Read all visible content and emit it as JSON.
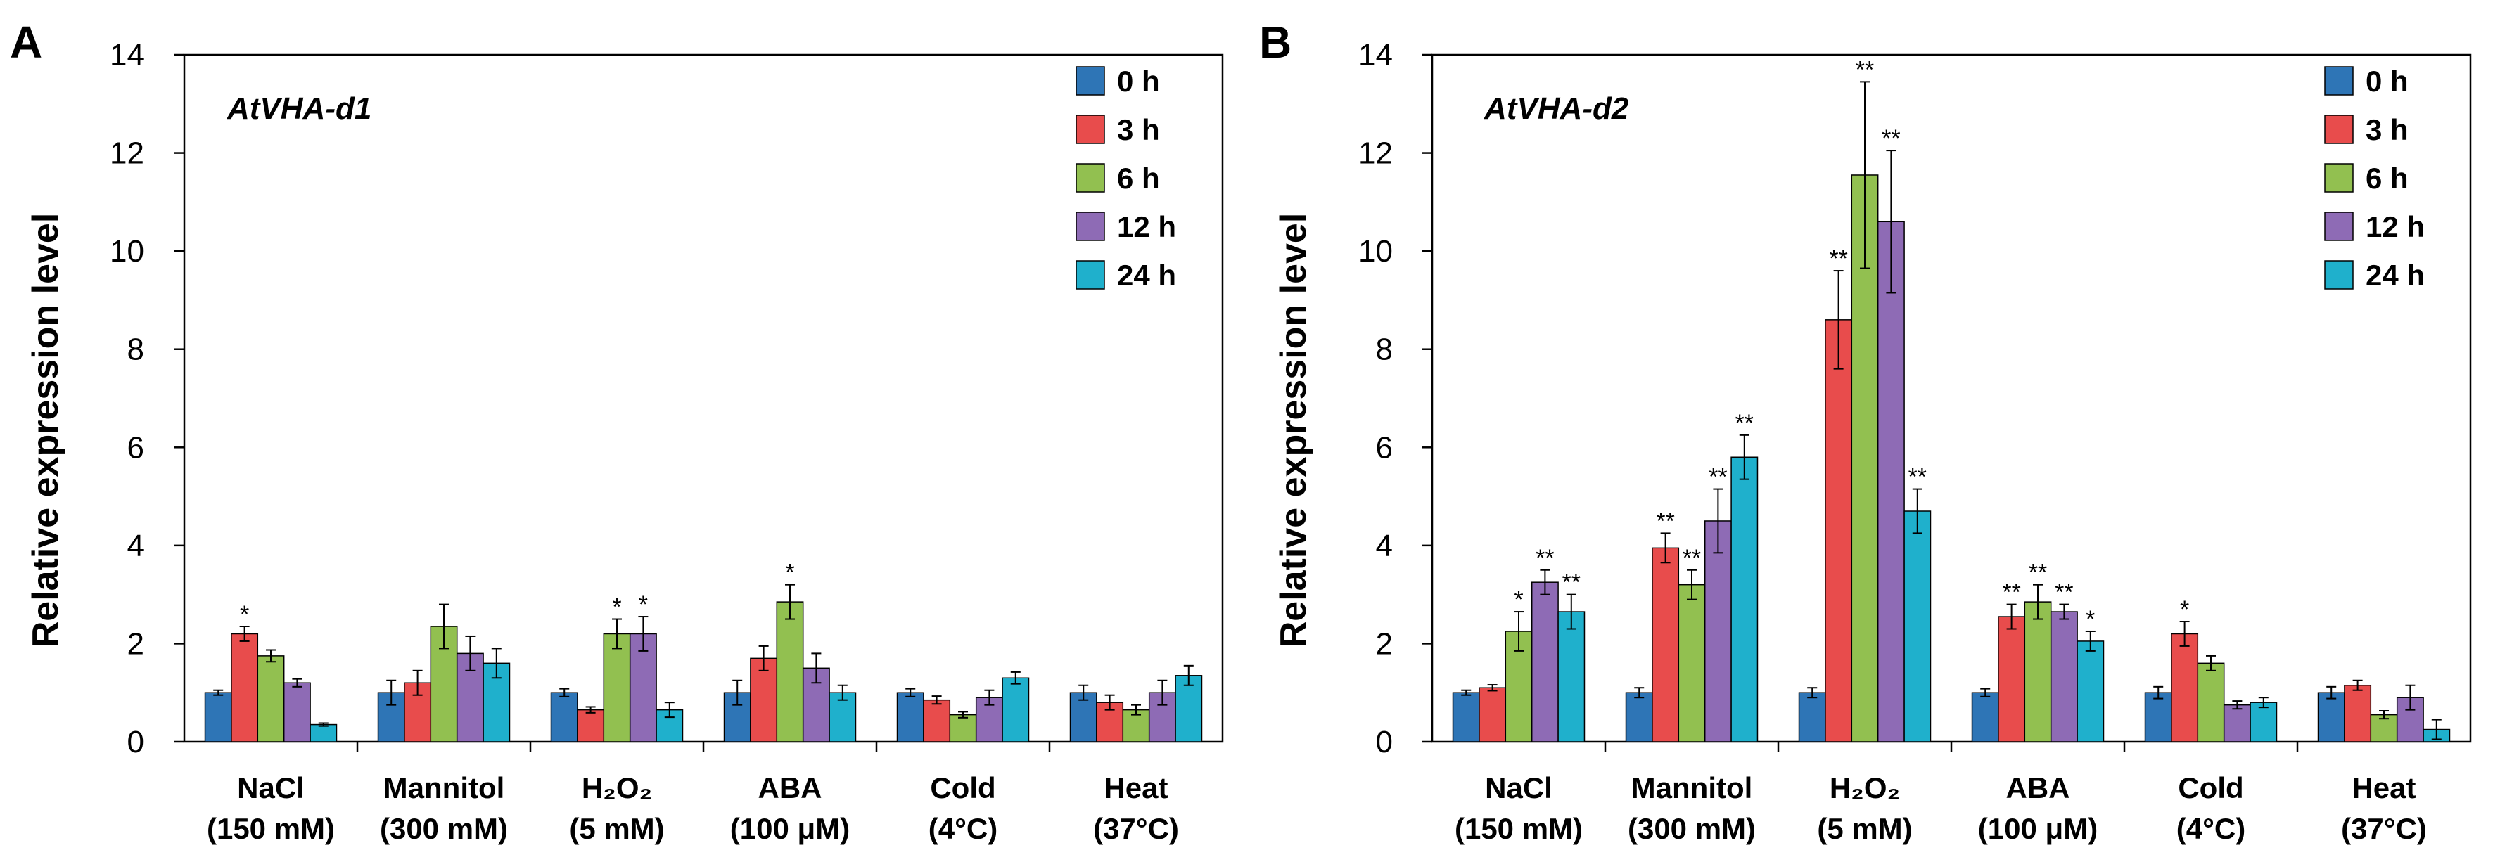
{
  "chart_data": [
    {
      "type": "bar",
      "panel": "A",
      "title": "AtVHA-d1",
      "ylabel": "Relative expression level",
      "ylim": [
        0,
        14
      ],
      "yticks": [
        "0",
        "2",
        "4",
        "6",
        "8",
        "10",
        "12",
        "14"
      ],
      "categories": [
        "NaCl",
        "Mannitol",
        "H₂O₂",
        "ABA",
        "Cold",
        "Heat"
      ],
      "category_sublabels": [
        "(150 mM)",
        "(300 mM)",
        "(5 mM)",
        "(100 μM)",
        "(4°C)",
        "(37°C)"
      ],
      "series": [
        {
          "name": "0 h",
          "color": "#2E75B6",
          "values": [
            1.0,
            1.0,
            1.0,
            1.0,
            1.0,
            1.0
          ],
          "errors": [
            0.05,
            0.25,
            0.08,
            0.25,
            0.08,
            0.15
          ],
          "sig": [
            "",
            "",
            "",
            "",
            "",
            ""
          ]
        },
        {
          "name": "3 h",
          "color": "#E84C4C",
          "values": [
            2.2,
            1.2,
            0.65,
            1.7,
            0.85,
            0.8
          ],
          "errors": [
            0.15,
            0.25,
            0.06,
            0.25,
            0.08,
            0.15
          ],
          "sig": [
            "*",
            "",
            "",
            "",
            "",
            ""
          ]
        },
        {
          "name": "6 h",
          "color": "#92C050",
          "values": [
            1.75,
            2.35,
            2.2,
            2.85,
            0.55,
            0.65
          ],
          "errors": [
            0.12,
            0.45,
            0.3,
            0.35,
            0.06,
            0.1
          ],
          "sig": [
            "",
            "",
            "*",
            "*",
            "",
            ""
          ]
        },
        {
          "name": "12 h",
          "color": "#8E6BB5",
          "values": [
            1.2,
            1.8,
            2.2,
            1.5,
            0.9,
            1.0
          ],
          "errors": [
            0.08,
            0.35,
            0.35,
            0.3,
            0.15,
            0.25
          ],
          "sig": [
            "",
            "",
            "*",
            "",
            "",
            ""
          ]
        },
        {
          "name": "24 h",
          "color": "#1FB0CC",
          "values": [
            0.35,
            1.6,
            0.65,
            1.0,
            1.3,
            1.35
          ],
          "errors": [
            0.03,
            0.3,
            0.15,
            0.15,
            0.12,
            0.2
          ],
          "sig": [
            "",
            "",
            "",
            "",
            "",
            ""
          ]
        }
      ]
    },
    {
      "type": "bar",
      "panel": "B",
      "title": "AtVHA-d2",
      "ylabel": "Relative expression level",
      "ylim": [
        0,
        14
      ],
      "yticks": [
        "0",
        "2",
        "4",
        "6",
        "8",
        "10",
        "12",
        "14"
      ],
      "categories": [
        "NaCl",
        "Mannitol",
        "H₂O₂",
        "ABA",
        "Cold",
        "Heat"
      ],
      "category_sublabels": [
        "(150 mM)",
        "(300 mM)",
        "(5 mM)",
        "(100 μM)",
        "(4°C)",
        "(37°C)"
      ],
      "series": [
        {
          "name": "0 h",
          "color": "#2E75B6",
          "values": [
            1.0,
            1.0,
            1.0,
            1.0,
            1.0,
            1.0
          ],
          "errors": [
            0.05,
            0.1,
            0.1,
            0.08,
            0.12,
            0.12
          ],
          "sig": [
            "",
            "",
            "",
            "",
            "",
            ""
          ]
        },
        {
          "name": "3 h",
          "color": "#E84C4C",
          "values": [
            1.1,
            3.95,
            8.6,
            2.55,
            2.2,
            1.15
          ],
          "errors": [
            0.06,
            0.3,
            1.0,
            0.25,
            0.25,
            0.1
          ],
          "sig": [
            "",
            "**",
            "**",
            "**",
            "*",
            ""
          ]
        },
        {
          "name": "6 h",
          "color": "#92C050",
          "values": [
            2.25,
            3.2,
            11.55,
            2.85,
            1.6,
            0.55
          ],
          "errors": [
            0.4,
            0.3,
            1.9,
            0.35,
            0.15,
            0.08
          ],
          "sig": [
            "*",
            "**",
            "**",
            "**",
            "",
            ""
          ]
        },
        {
          "name": "12 h",
          "color": "#8E6BB5",
          "values": [
            3.25,
            4.5,
            10.6,
            2.65,
            0.75,
            0.9
          ],
          "errors": [
            0.25,
            0.65,
            1.45,
            0.15,
            0.08,
            0.25
          ],
          "sig": [
            "**",
            "**",
            "**",
            "**",
            "",
            ""
          ]
        },
        {
          "name": "24 h",
          "color": "#1FB0CC",
          "values": [
            2.65,
            5.8,
            4.7,
            2.05,
            0.8,
            0.25
          ],
          "errors": [
            0.35,
            0.45,
            0.45,
            0.2,
            0.1,
            0.2
          ],
          "sig": [
            "**",
            "**",
            "**",
            "*",
            "",
            ""
          ]
        }
      ]
    }
  ]
}
